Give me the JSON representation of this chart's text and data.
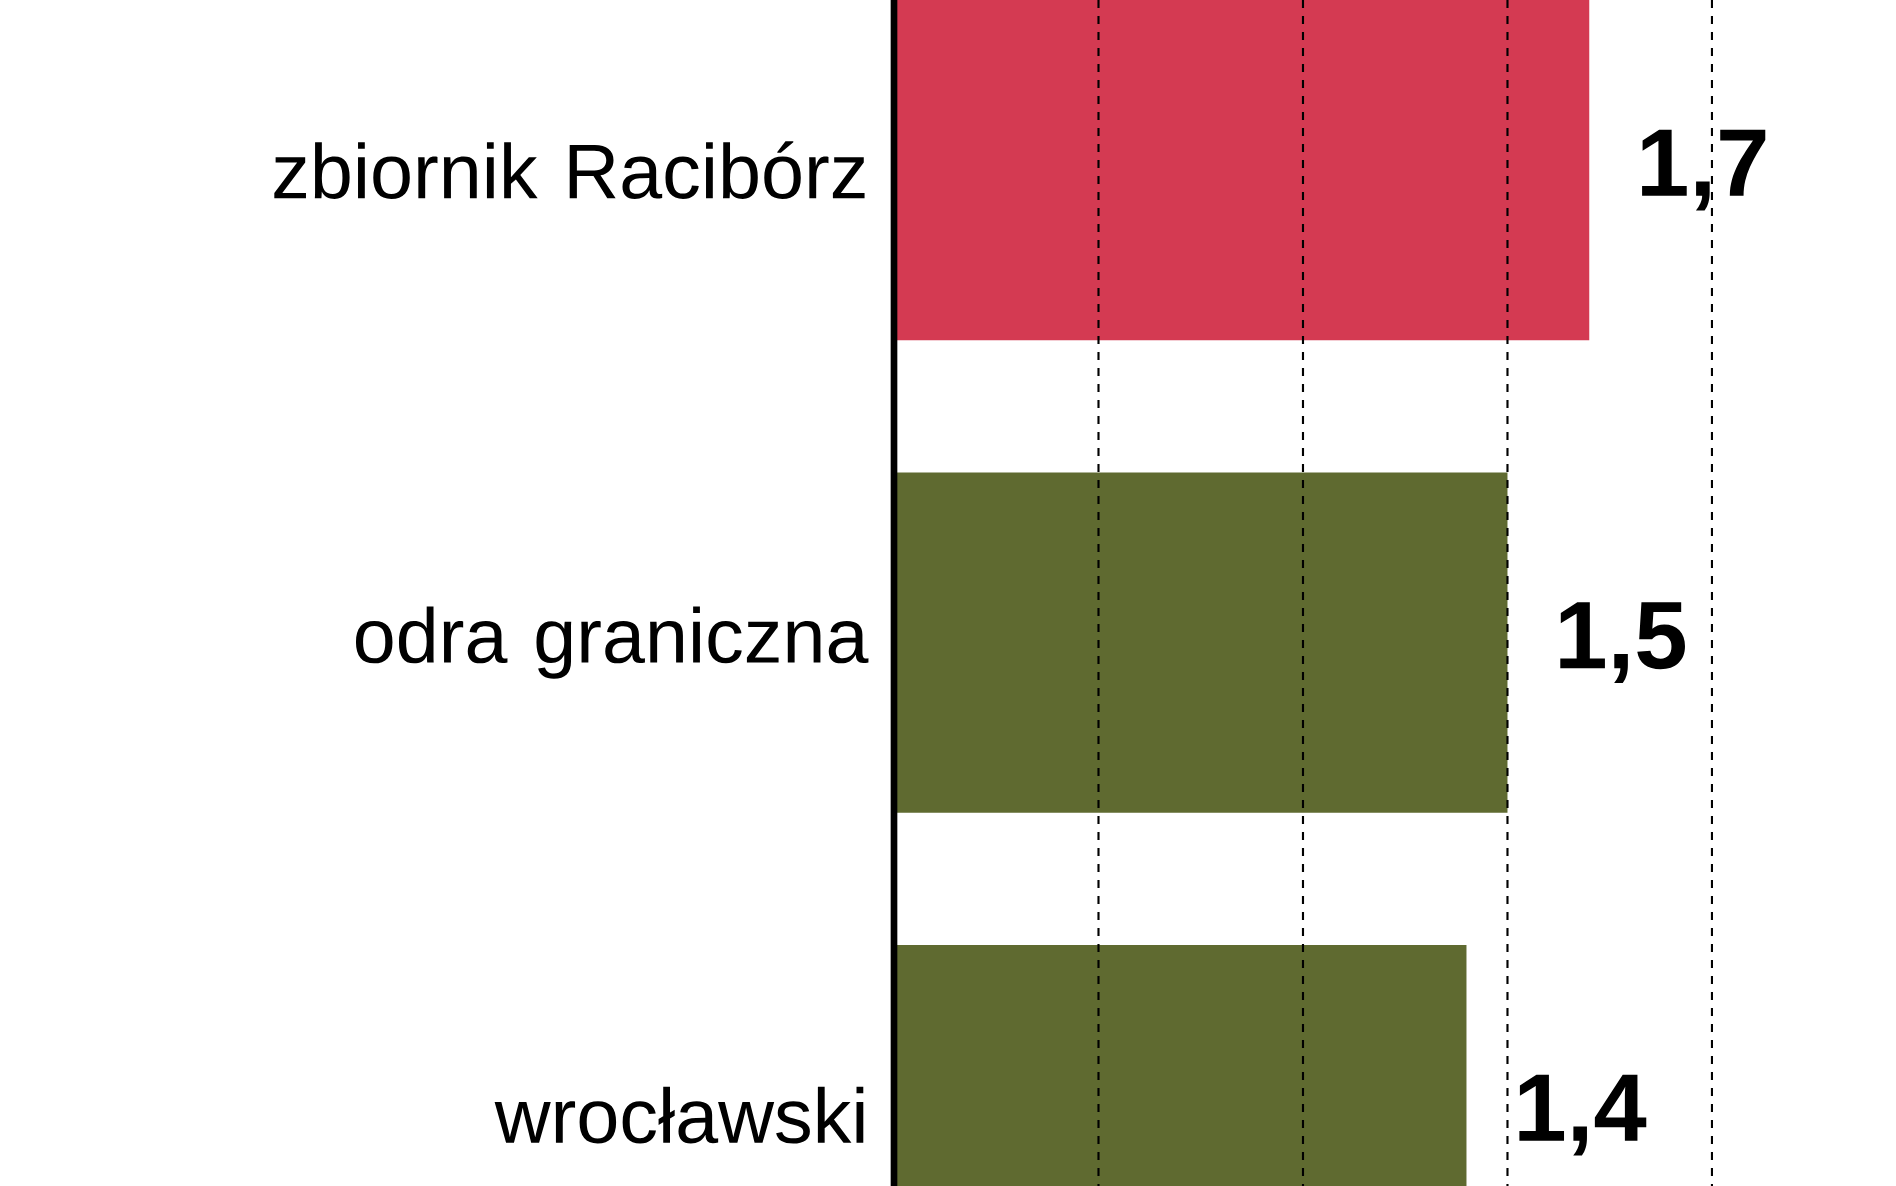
{
  "chart_data": {
    "type": "bar",
    "orientation": "horizontal",
    "categories": [
      "zbiornik Racibórz",
      "odra graniczna",
      "wrocławski"
    ],
    "values": [
      1.7,
      1.5,
      1.4
    ],
    "value_labels": [
      "1,7",
      "1,5",
      "1,4"
    ],
    "colors": [
      "#d43a52",
      "#5f6a30",
      "#5f6a30"
    ],
    "xticks": [
      {
        "value": 0.5,
        "label": null
      },
      {
        "value": 1.0,
        "label": null
      },
      {
        "value": 1.5,
        "label": null
      },
      {
        "value": 2.0,
        "label": null
      }
    ],
    "grid": "x",
    "tick_labels": "y"
  }
}
